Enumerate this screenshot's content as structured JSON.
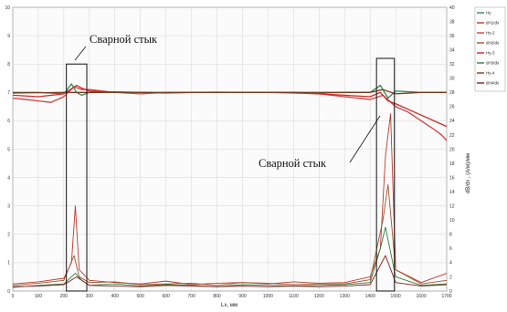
{
  "chart_data": {
    "type": "line",
    "xlabel": "Lx, мм",
    "ylabel_right": "dB/dx , (А/м)/мм",
    "xlim": [
      0,
      1700
    ],
    "ylim_left": [
      0,
      10
    ],
    "ylim_right": [
      0,
      40
    ],
    "x_ticks": [
      0,
      100,
      200,
      300,
      400,
      500,
      600,
      700,
      800,
      900,
      1000,
      1100,
      1200,
      1300,
      1400,
      1500,
      1600,
      1700
    ],
    "y_left_ticks": [
      0,
      1,
      2,
      3,
      4,
      5,
      6,
      7,
      8,
      9,
      10
    ],
    "y_right_ticks": [
      0,
      2,
      4,
      6,
      8,
      10,
      12,
      14,
      16,
      18,
      20,
      22,
      24,
      26,
      28,
      30,
      32,
      34,
      36,
      38,
      40
    ],
    "grid": true,
    "legend_position": "right",
    "annotations": [
      {
        "text": "Сварной стык",
        "x_range": [
          210,
          290
        ],
        "y_range": [
          0,
          8.0
        ]
      },
      {
        "text": "Сварной стык",
        "x_range": [
          1425,
          1495
        ],
        "y_range": [
          0,
          8.2
        ]
      }
    ],
    "series": [
      {
        "name": "Hy",
        "color": "#2e8b57",
        "axis": "left",
        "x": [
          0,
          100,
          200,
          230,
          250,
          270,
          300,
          400,
          500,
          600,
          700,
          800,
          900,
          1000,
          1100,
          1200,
          1300,
          1400,
          1440,
          1470,
          1500,
          1600,
          1700
        ],
        "y": [
          7.0,
          7.0,
          6.95,
          7.3,
          7.0,
          6.9,
          7.0,
          7.02,
          7.0,
          6.98,
          7.0,
          7.01,
          7.0,
          7.0,
          7.0,
          6.98,
          7.0,
          7.0,
          7.25,
          6.8,
          7.05,
          7.0,
          7.0
        ]
      },
      {
        "name": "dH1/dx",
        "color": "#c0392b",
        "axis": "right",
        "x": [
          0,
          100,
          200,
          230,
          245,
          260,
          300,
          400,
          500,
          600,
          700,
          800,
          900,
          1000,
          1100,
          1200,
          1300,
          1400,
          1440,
          1460,
          1480,
          1500,
          1600,
          1700
        ],
        "y": [
          1.0,
          1.3,
          1.8,
          4,
          12,
          3,
          1.5,
          1.2,
          1.0,
          1.4,
          0.9,
          1.1,
          1.2,
          1.0,
          1.3,
          1.1,
          1.2,
          2.0,
          6,
          19,
          25,
          3,
          1.2,
          2.5
        ]
      },
      {
        "name": "Hy-2",
        "color": "#d93c3c",
        "axis": "left",
        "x": [
          0,
          50,
          100,
          150,
          200,
          240,
          270,
          300,
          400,
          500,
          600,
          700,
          800,
          900,
          1000,
          1100,
          1200,
          1300,
          1350,
          1400,
          1450,
          1500,
          1550,
          1600,
          1650,
          1680,
          1700
        ],
        "y": [
          6.8,
          6.75,
          6.7,
          6.65,
          6.85,
          7.2,
          7.1,
          7.1,
          7.0,
          6.95,
          7.0,
          7.0,
          7.0,
          7.0,
          7.0,
          6.98,
          6.95,
          6.85,
          6.8,
          6.75,
          6.9,
          6.5,
          6.3,
          6.0,
          5.7,
          5.5,
          5.3
        ]
      },
      {
        "name": "dH2/dx",
        "color": "#a0522d",
        "axis": "right",
        "x": [
          0,
          100,
          200,
          240,
          260,
          300,
          400,
          500,
          600,
          700,
          800,
          900,
          1000,
          1100,
          1200,
          1300,
          1400,
          1450,
          1470,
          1500,
          1600,
          1700
        ],
        "y": [
          0.8,
          1.1,
          1.5,
          5,
          2,
          1.2,
          1.3,
          0.9,
          1.0,
          1.1,
          0.8,
          1.2,
          1.1,
          0.9,
          1.0,
          1.0,
          1.6,
          10,
          15,
          3,
          1.0,
          1.5
        ]
      },
      {
        "name": "Hy-3",
        "color": "#cc2a2a",
        "axis": "left",
        "x": [
          0,
          100,
          200,
          250,
          270,
          300,
          400,
          500,
          600,
          700,
          800,
          900,
          1000,
          1100,
          1200,
          1300,
          1400,
          1440,
          1470,
          1500,
          1600,
          1700
        ],
        "y": [
          6.9,
          6.85,
          6.95,
          7.25,
          7.15,
          7.05,
          7.0,
          7.0,
          7.0,
          7.0,
          7.0,
          7.0,
          7.0,
          7.0,
          6.95,
          6.9,
          6.85,
          7.0,
          6.7,
          6.6,
          6.2,
          5.8
        ]
      },
      {
        "name": "dH3/dx",
        "color": "#2f7f3f",
        "axis": "right",
        "x": [
          0,
          100,
          200,
          245,
          270,
          300,
          400,
          500,
          600,
          700,
          800,
          900,
          1000,
          1100,
          1200,
          1300,
          1400,
          1440,
          1460,
          1500,
          1600,
          1700
        ],
        "y": [
          0.5,
          0.8,
          1.0,
          2.5,
          1.5,
          0.8,
          1.0,
          0.7,
          0.9,
          0.8,
          0.6,
          0.9,
          0.8,
          0.7,
          0.8,
          0.9,
          1.2,
          6,
          9,
          2,
          0.8,
          1.0
        ]
      },
      {
        "name": "Hy-4",
        "color": "#7a3b1f",
        "axis": "left",
        "x": [
          0,
          100,
          200,
          300,
          400,
          500,
          600,
          700,
          800,
          900,
          1000,
          1100,
          1200,
          1300,
          1400,
          1450,
          1500,
          1600,
          1700
        ],
        "y": [
          6.98,
          6.99,
          7.0,
          7.0,
          7.0,
          7.0,
          6.99,
          7.0,
          7.0,
          7.0,
          7.0,
          7.0,
          7.0,
          7.0,
          7.0,
          7.1,
          6.95,
          7.0,
          7.0
        ]
      },
      {
        "name": "dH4/dx",
        "color": "#8b1a1a",
        "axis": "right",
        "x": [
          0,
          100,
          200,
          250,
          300,
          400,
          500,
          600,
          700,
          800,
          900,
          1000,
          1100,
          1200,
          1300,
          1400,
          1460,
          1500,
          1600,
          1700
        ],
        "y": [
          0.6,
          0.7,
          0.9,
          2,
          0.8,
          0.7,
          0.6,
          0.8,
          0.7,
          0.6,
          0.7,
          0.6,
          0.7,
          0.6,
          0.7,
          0.9,
          5,
          1.2,
          0.7,
          0.9
        ]
      }
    ]
  }
}
